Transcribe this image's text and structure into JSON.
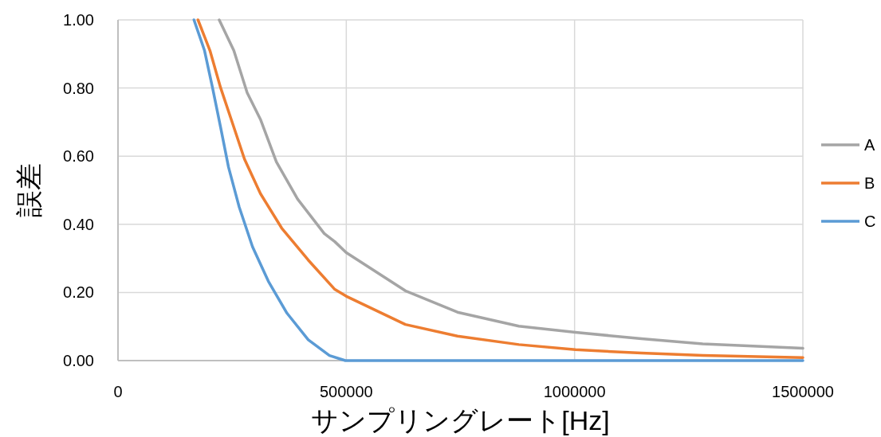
{
  "chart_data": {
    "type": "line",
    "xlabel": "サンプリングレート[Hz]",
    "ylabel": "誤差",
    "xlim": [
      0,
      1500000
    ],
    "ylim": [
      0,
      1
    ],
    "xticks": [
      0,
      500000,
      1000000,
      1500000
    ],
    "yticks": [
      {
        "value": 0,
        "label": "0.00"
      },
      {
        "value": 0.2,
        "label": "0.20"
      },
      {
        "value": 0.4,
        "label": "0.40"
      },
      {
        "value": 0.6,
        "label": "0.60"
      },
      {
        "value": 0.8,
        "label": "0.80"
      },
      {
        "value": 1,
        "label": "1.00"
      }
    ],
    "grid": true,
    "legend": "right",
    "series": [
      {
        "name": "A",
        "color": "#a5a5a5",
        "x": [
          221700,
          253700,
          282900,
          312000,
          346900,
          393400,
          451700,
          474900,
          499700,
          629400,
          743500,
          878000,
          1002000,
          1146300,
          1280700,
          1500000
        ],
        "values": [
          1.0,
          0.91,
          0.786,
          0.708,
          0.583,
          0.474,
          0.373,
          0.349,
          0.317,
          0.205,
          0.142,
          0.101,
          0.083,
          0.064,
          0.049,
          0.036
        ]
      },
      {
        "name": "B",
        "color": "#ed7d31",
        "x": [
          175200,
          201400,
          224700,
          248000,
          277100,
          312000,
          358500,
          416700,
          474900,
          499700,
          629400,
          743500,
          878000,
          1002000,
          1146300,
          1280700,
          1500000
        ],
        "values": [
          1.0,
          0.91,
          0.801,
          0.708,
          0.591,
          0.49,
          0.389,
          0.295,
          0.209,
          0.189,
          0.106,
          0.072,
          0.047,
          0.032,
          0.022,
          0.015,
          0.009
        ]
      },
      {
        "name": "C",
        "color": "#5b9bd5",
        "x": [
          166400,
          189500,
          207000,
          224700,
          242000,
          265400,
          294600,
          329300,
          370200,
          416700,
          463100,
          498000,
          1000000,
          1500000
        ],
        "values": [
          1.0,
          0.91,
          0.801,
          0.685,
          0.568,
          0.451,
          0.334,
          0.233,
          0.139,
          0.061,
          0.015,
          0,
          0,
          0
        ]
      }
    ]
  }
}
